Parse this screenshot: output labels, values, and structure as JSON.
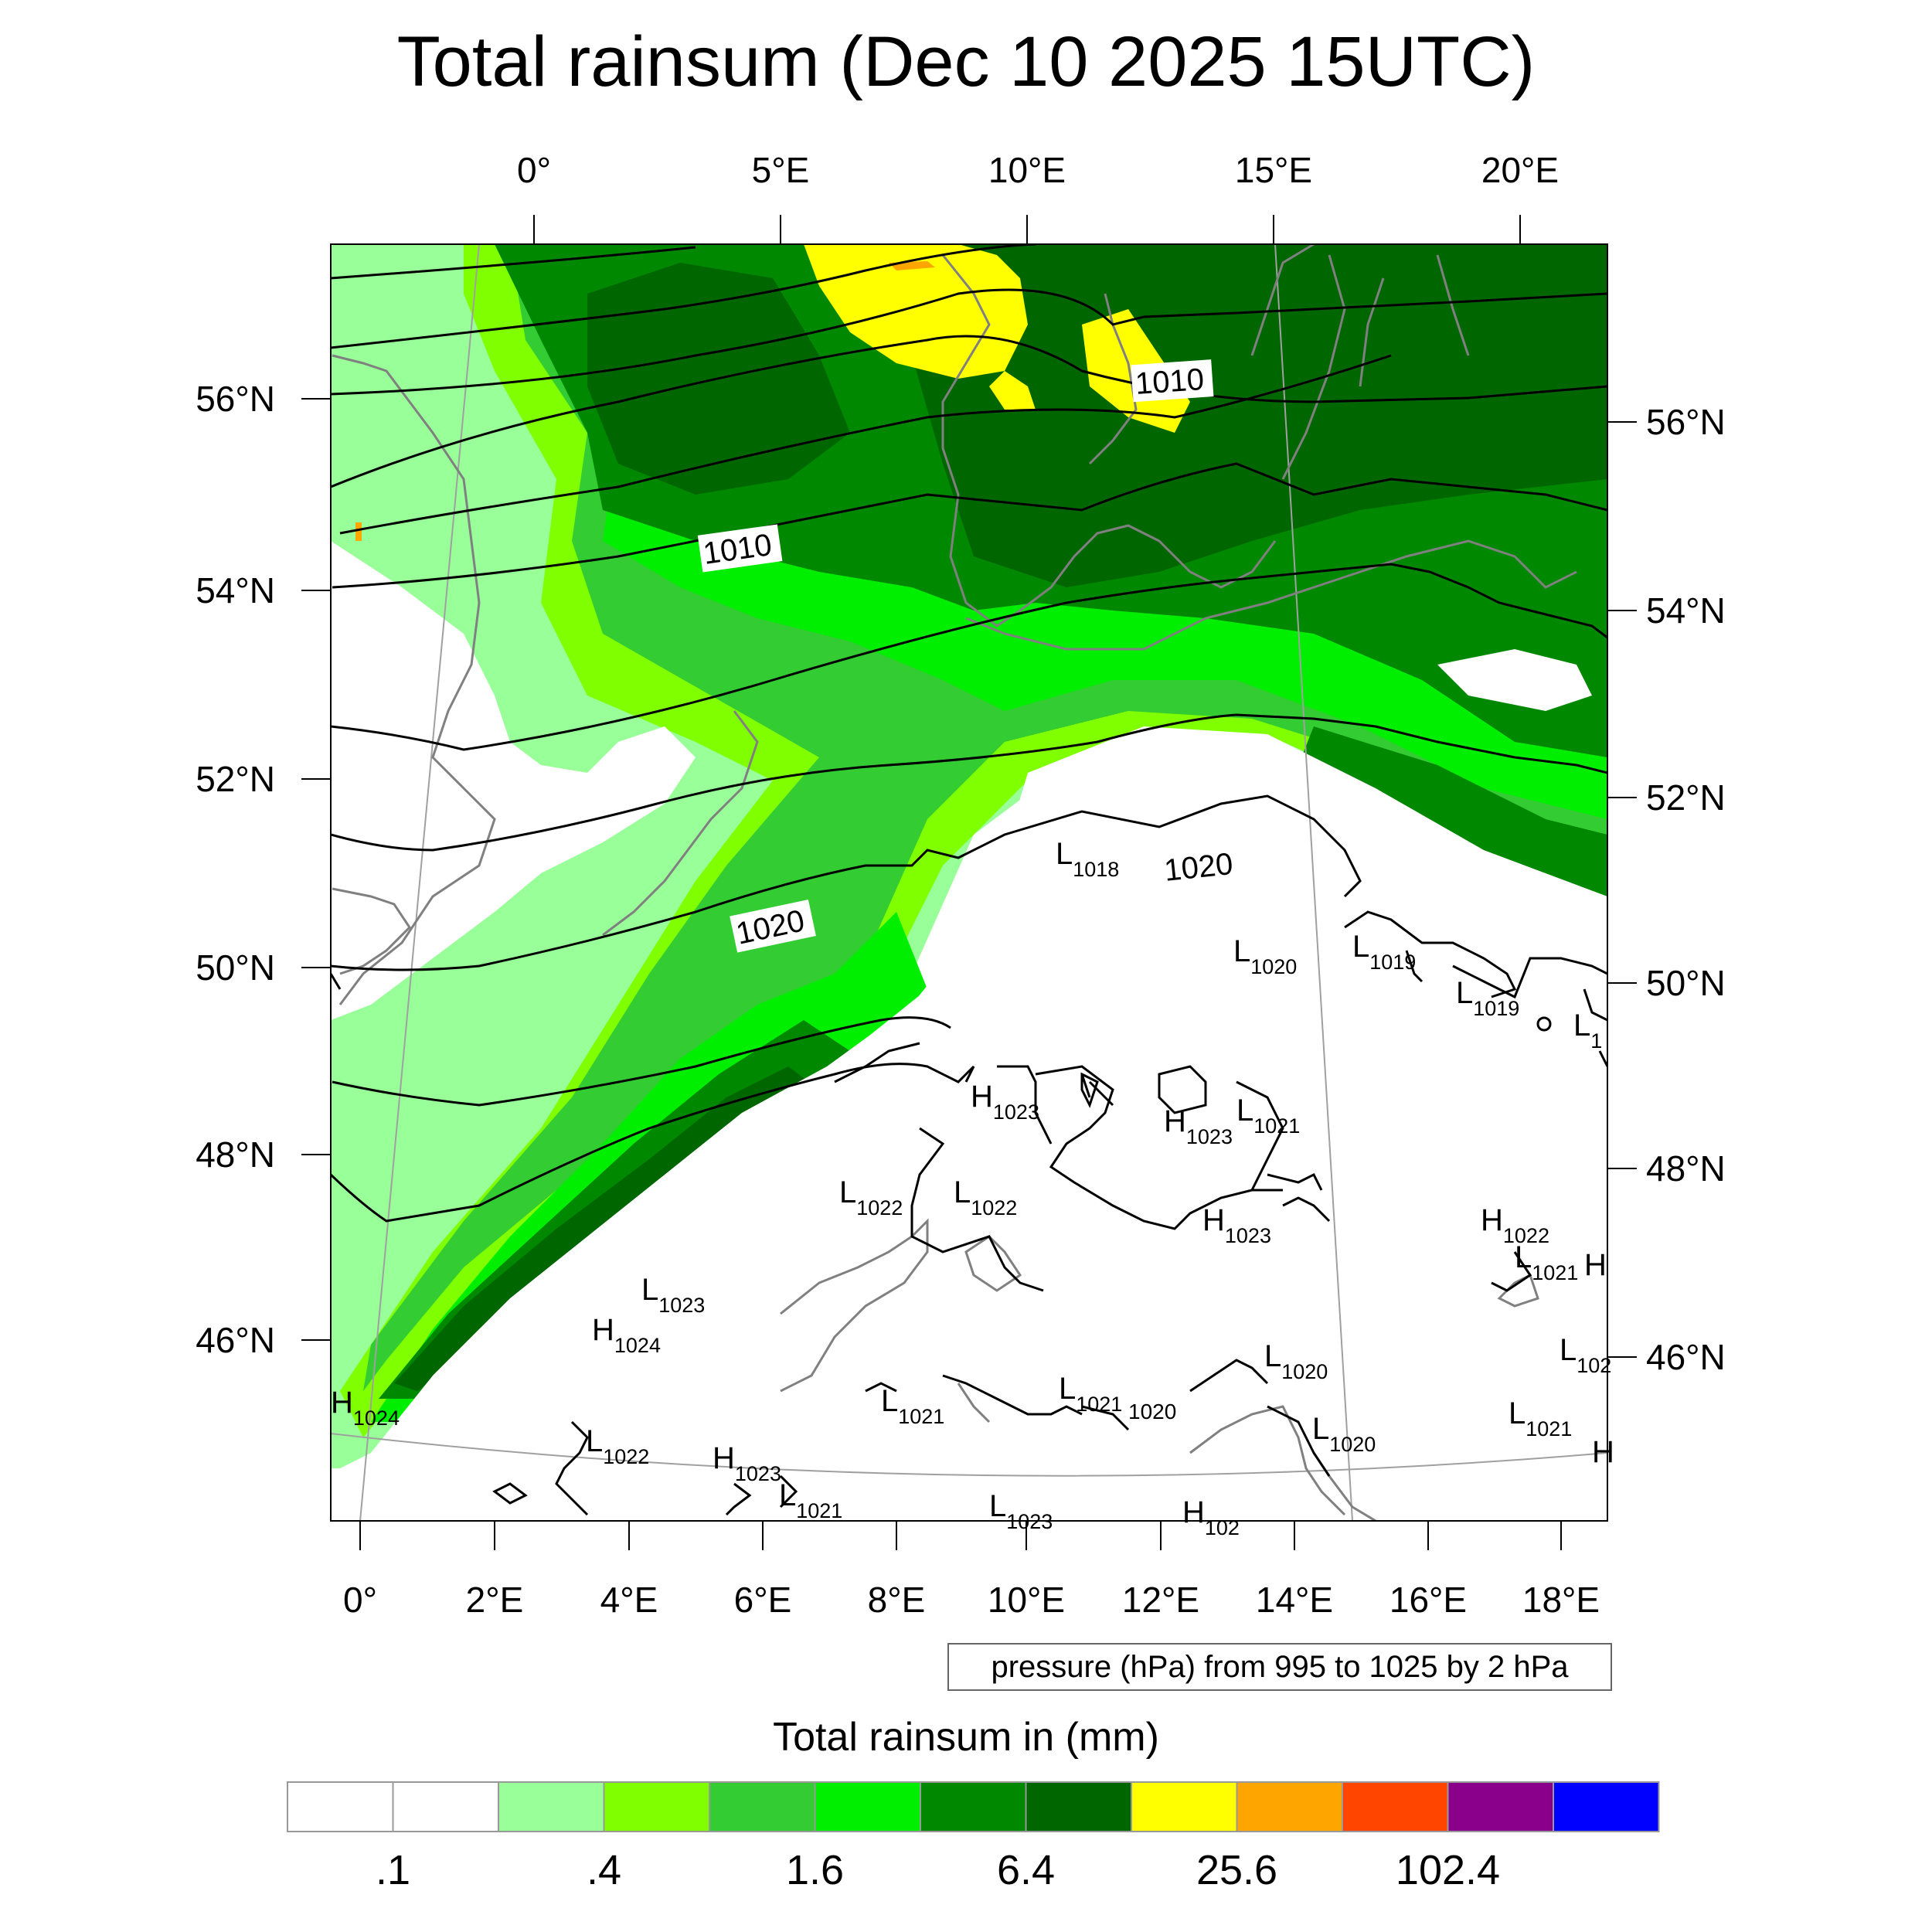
{
  "title": "Total rainsum (Dec 10 2025 15UTC)",
  "top_lon_labels": [
    "0°",
    "5°E",
    "10°E",
    "15°E",
    "20°E"
  ],
  "left_lat_labels": [
    "56°N",
    "54°N",
    "52°N",
    "50°N",
    "48°N",
    "46°N"
  ],
  "right_lat_labels": [
    "56°N",
    "54°N",
    "52°N",
    "50°N",
    "48°N",
    "46°N"
  ],
  "bottom_lon_labels": [
    "0°",
    "2°E",
    "4°E",
    "6°E",
    "8°E",
    "10°E",
    "12°E",
    "14°E",
    "16°E",
    "18°E"
  ],
  "contour_labels": [
    "1010",
    "1010",
    "1020",
    "1020"
  ],
  "pressure_centers": [
    {
      "type": "L",
      "value": "1018"
    },
    {
      "type": "L",
      "value": "1020"
    },
    {
      "type": "L",
      "value": "1019"
    },
    {
      "type": "L",
      "value": "1019"
    },
    {
      "type": "L",
      "value": "1"
    },
    {
      "type": "H",
      "value": "1023"
    },
    {
      "type": "H",
      "value": "1023"
    },
    {
      "type": "L",
      "value": "1021"
    },
    {
      "type": "L",
      "value": "1022"
    },
    {
      "type": "L",
      "value": "1022"
    },
    {
      "type": "H",
      "value": "1023"
    },
    {
      "type": "H",
      "value": "1022"
    },
    {
      "type": "L",
      "value": "1021"
    },
    {
      "type": "H",
      "value": ""
    },
    {
      "type": "L",
      "value": "1023"
    },
    {
      "type": "H",
      "value": "1024"
    },
    {
      "type": "L",
      "value": "102"
    },
    {
      "type": "H",
      "value": "1024"
    },
    {
      "type": "L",
      "value": "1022"
    },
    {
      "type": "H",
      "value": "1023"
    },
    {
      "type": "L",
      "value": "1021"
    },
    {
      "type": "L",
      "value": "1021"
    },
    {
      "type": "L",
      "value": "1021"
    },
    {
      "type": "L",
      "value": "1020"
    },
    {
      "type": "L",
      "value": "1020"
    },
    {
      "type": "L",
      "value": "1021"
    },
    {
      "type": "L",
      "value": "1023"
    },
    {
      "type": "H",
      "value": "102"
    },
    {
      "type": "H",
      "value": ""
    }
  ],
  "stray_label": "1020",
  "note": "pressure (hPa) from 995 to 1025 by 2 hPa",
  "colorbar": {
    "title": "Total rainsum in (mm)",
    "colors": [
      "#ffffff",
      "#ffffff",
      "#99ff99",
      "#80ff00",
      "#33cc33",
      "#00ee00",
      "#008800",
      "#006600",
      "#ffff00",
      "#ffa500",
      "#ff4500",
      "#8b008b",
      "#0000ff"
    ],
    "tick_labels": [
      ".1",
      ".4",
      "1.6",
      "6.4",
      "25.6",
      "102.4"
    ]
  },
  "legend_colors": {
    "contour": "#000000",
    "coastline": "#808080",
    "grid": "#a0a0a0"
  }
}
